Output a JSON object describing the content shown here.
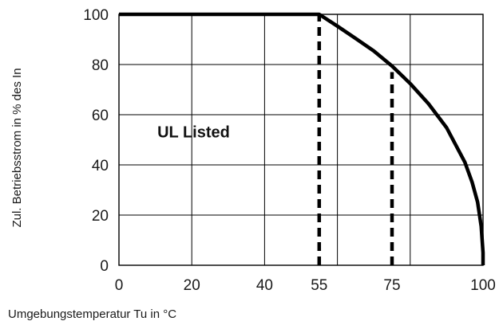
{
  "chart_data": {
    "type": "line",
    "xlabel": "Umgebungstemperatur Tu in °C",
    "ylabel": "Zul. Betriebsstrom in % des In",
    "xlim": [
      0,
      100
    ],
    "ylim": [
      0,
      100
    ],
    "x_ticks": [
      0,
      20,
      40,
      55,
      75,
      100
    ],
    "y_ticks": [
      0,
      20,
      40,
      60,
      80,
      100
    ],
    "x_grid": [
      0,
      20,
      40,
      60,
      80,
      100
    ],
    "y_grid": [
      0,
      20,
      40,
      60,
      80,
      100
    ],
    "grid": true,
    "series": [
      {
        "x": [
          0,
          55,
          60,
          65,
          70,
          75,
          80,
          85,
          90,
          95,
          97,
          98.5,
          99.5,
          100,
          100
        ],
        "y": [
          100,
          100,
          95.3,
          90.4,
          85.4,
          79.4,
          72.4,
          64.4,
          54.8,
          41.1,
          33.1,
          25.2,
          15.5,
          5,
          0
        ]
      }
    ],
    "reference_lines": [
      {
        "x": 55,
        "y_from": 0,
        "y_to": 100,
        "style": "dashed"
      },
      {
        "x": 75,
        "y_from": 0,
        "y_to": 77,
        "style": "dashed"
      }
    ],
    "annotations": [
      {
        "text": "UL Listed",
        "x": 20.5,
        "y": 51
      }
    ],
    "colors": {
      "curve": "#000000",
      "grid": "#000000",
      "text": "#1a1a1a"
    }
  }
}
